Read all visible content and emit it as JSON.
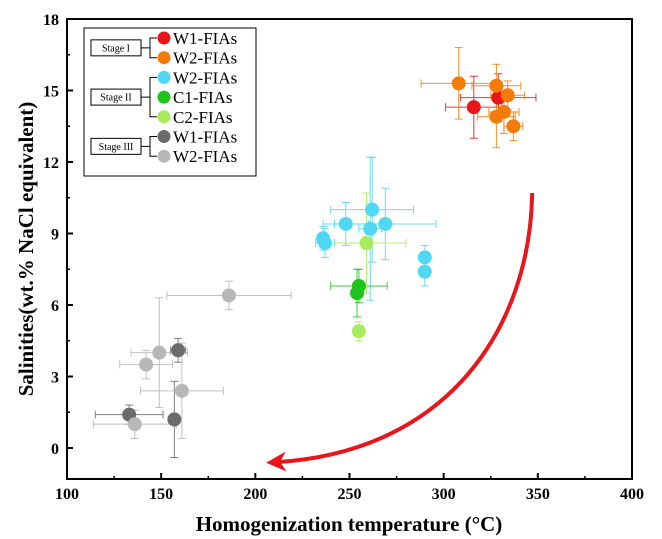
{
  "chart_data": {
    "type": "scatter",
    "xlabel": "Homogenization temperature (°C)",
    "ylabel": "Salinities(wt.% NaCl equivalent)",
    "xlim": [
      100,
      400
    ],
    "ylim": [
      -1.3,
      18
    ],
    "x_ticks": [
      100,
      150,
      200,
      250,
      300,
      350,
      400
    ],
    "y_ticks": [
      0,
      3,
      6,
      9,
      12,
      15,
      18
    ],
    "grid": false,
    "legend_position": "top-left",
    "legend_groups": [
      {
        "label": "Stage I",
        "series": [
          0,
          1
        ]
      },
      {
        "label": "Stage II",
        "series": [
          2,
          3,
          4
        ]
      },
      {
        "label": "Stage III",
        "series": [
          5,
          6
        ]
      }
    ],
    "series": [
      {
        "name": "W1-FIAs",
        "color": "#e8161b",
        "points": [
          {
            "x": 316,
            "y": 14.3,
            "xerr": 15,
            "yerr": 1.3
          },
          {
            "x": 329,
            "y": 14.7,
            "xerr": 20,
            "yerr": 1.0
          }
        ]
      },
      {
        "name": "W2-FIAs",
        "color": "#f47b08",
        "points": [
          {
            "x": 308,
            "y": 15.3,
            "xerr": 20,
            "yerr": 1.5
          },
          {
            "x": 328,
            "y": 15.2,
            "xerr": 13,
            "yerr": 0.9
          },
          {
            "x": 334,
            "y": 14.8,
            "xerr": 9,
            "yerr": 0.6
          },
          {
            "x": 332,
            "y": 14.1,
            "xerr": 8,
            "yerr": 0.9
          },
          {
            "x": 328,
            "y": 13.9,
            "xerr": 10,
            "yerr": 1.3
          },
          {
            "x": 337,
            "y": 13.5,
            "xerr": 5,
            "yerr": 0.6
          }
        ]
      },
      {
        "name": "W2-FIAs",
        "color": "#4fd8f3",
        "points": [
          {
            "x": 236,
            "y": 8.8,
            "xerr": 3,
            "yerr": 0.5
          },
          {
            "x": 237,
            "y": 8.6,
            "xerr": 5,
            "yerr": 0.6
          },
          {
            "x": 248,
            "y": 9.4,
            "xerr": 12,
            "yerr": 0.9
          },
          {
            "x": 262,
            "y": 10.0,
            "xerr": 22,
            "yerr": 2.2
          },
          {
            "x": 261,
            "y": 9.2,
            "xerr": 6,
            "yerr": 3.0
          },
          {
            "x": 269,
            "y": 9.4,
            "xerr": 27,
            "yerr": 1.5
          },
          {
            "x": 290,
            "y": 8.0,
            "xerr": 2,
            "yerr": 0.5
          },
          {
            "x": 290,
            "y": 7.4,
            "xerr": 2,
            "yerr": 0.6
          }
        ]
      },
      {
        "name": "C1-FIAs",
        "color": "#1ec31c",
        "points": [
          {
            "x": 255,
            "y": 6.8,
            "xerr": 15,
            "yerr": 0.7
          },
          {
            "x": 254,
            "y": 6.5,
            "xerr": 3,
            "yerr": 1.0
          }
        ]
      },
      {
        "name": "C2-FIAs",
        "color": "#a9eb5f",
        "points": [
          {
            "x": 259,
            "y": 8.6,
            "xerr": 21,
            "yerr": 2.1
          },
          {
            "x": 255,
            "y": 4.9,
            "xerr": 2,
            "yerr": 0.4
          }
        ]
      },
      {
        "name": "W1-FIAs",
        "color": "#6b6b6b",
        "points": [
          {
            "x": 159,
            "y": 4.1,
            "xerr": 4,
            "yerr": 0.5
          },
          {
            "x": 133,
            "y": 1.4,
            "xerr": 18,
            "yerr": 0.4
          },
          {
            "x": 157,
            "y": 1.2,
            "xerr": 3,
            "yerr": 1.6
          }
        ]
      },
      {
        "name": "W2-FIAs",
        "color": "#b7b7b7",
        "points": [
          {
            "x": 186,
            "y": 6.4,
            "xerr": 33,
            "yerr": 0.6
          },
          {
            "x": 149,
            "y": 4.0,
            "xerr": 15,
            "yerr": 2.3
          },
          {
            "x": 142,
            "y": 3.5,
            "xerr": 14,
            "yerr": 0.6
          },
          {
            "x": 161,
            "y": 2.4,
            "xerr": 22,
            "yerr": 2.0
          },
          {
            "x": 136,
            "y": 1.0,
            "xerr": 22,
            "yerr": 0.6
          }
        ]
      }
    ],
    "annotations": [
      {
        "type": "curved-arrow",
        "color": "#e8161b",
        "from": [
          347,
          10.7
        ],
        "to": [
          210,
          -0.6
        ]
      }
    ]
  }
}
